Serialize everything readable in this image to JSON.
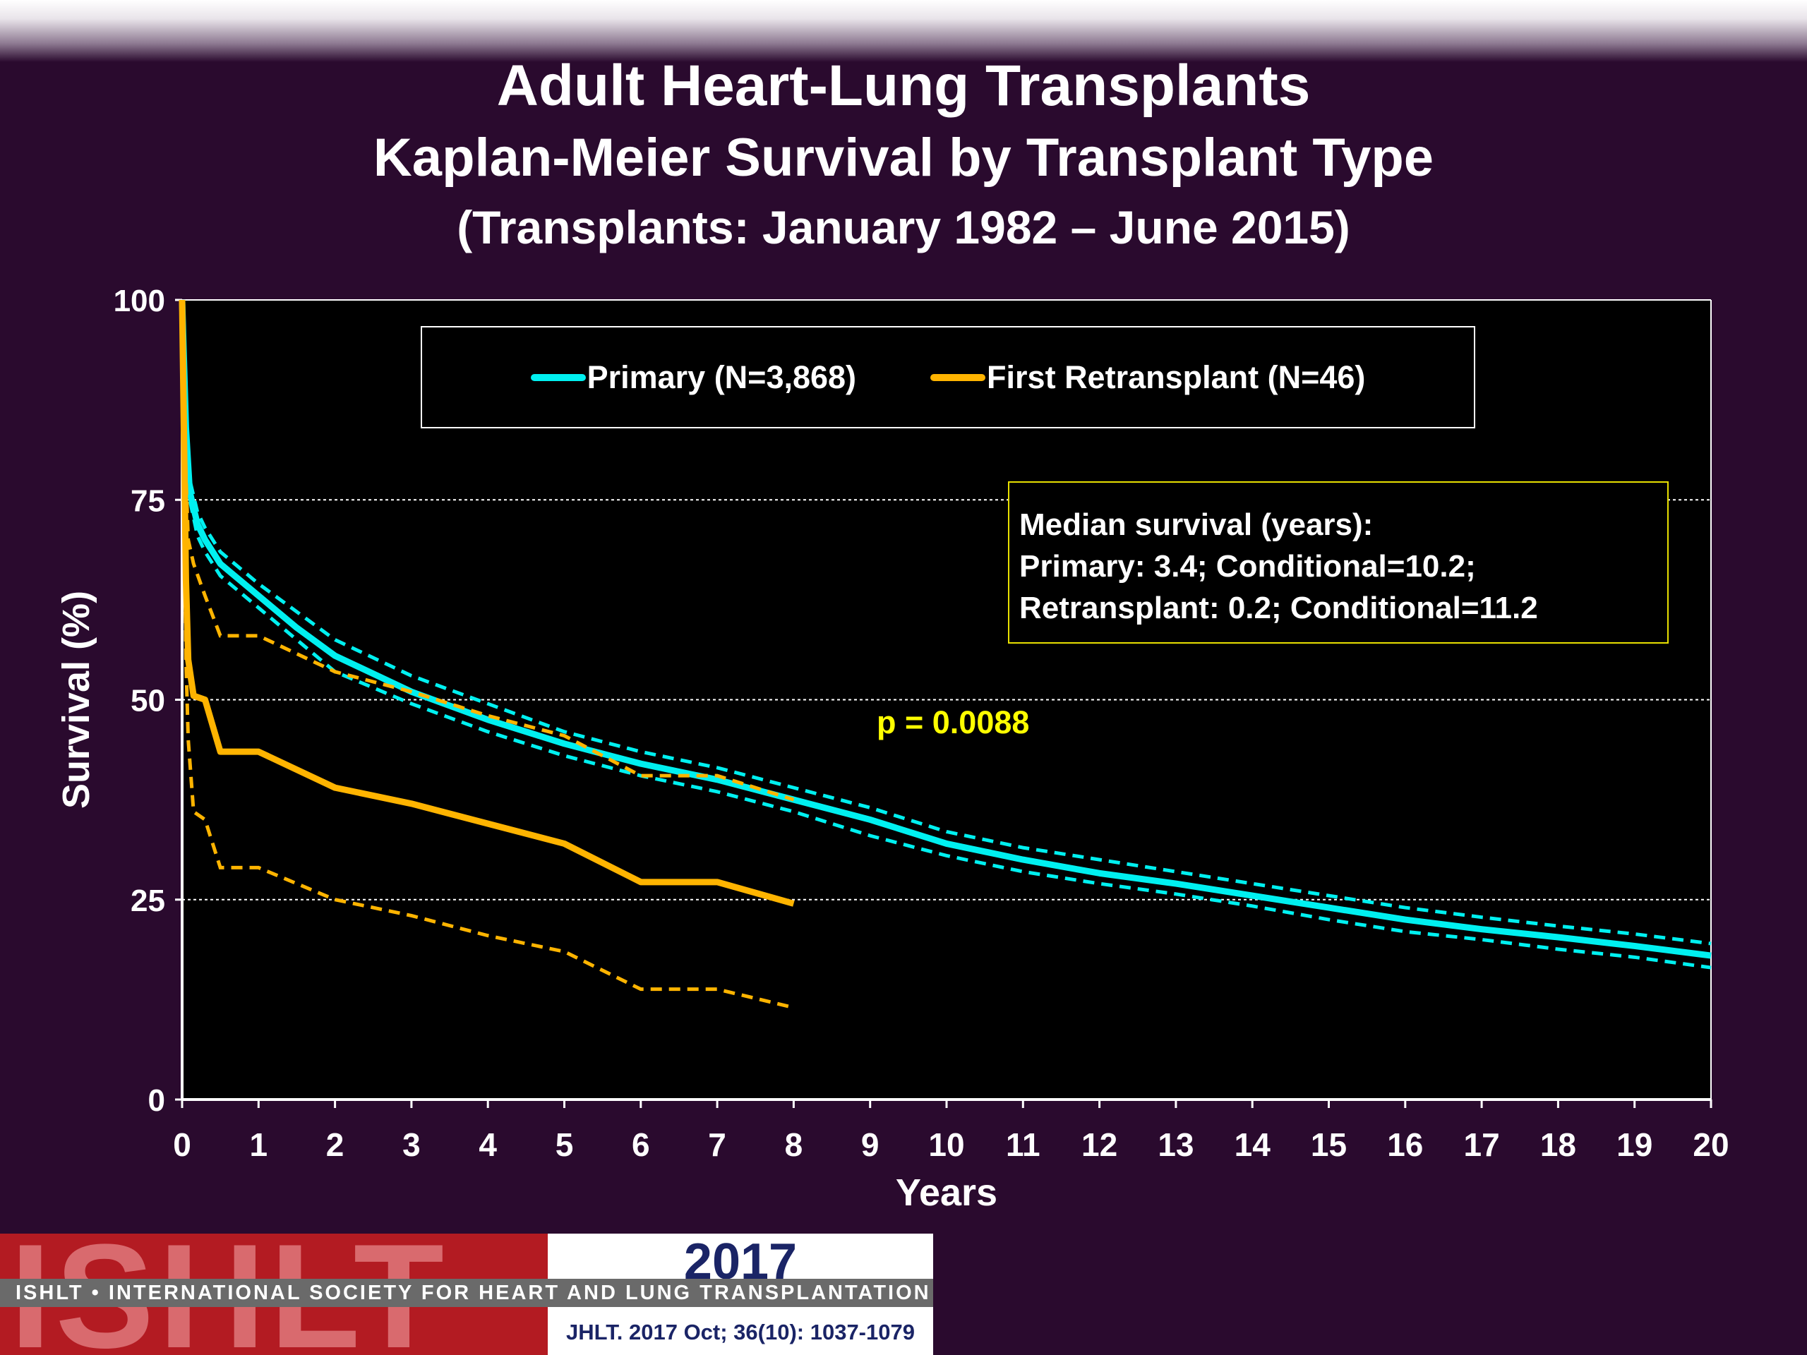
{
  "titles": {
    "line1": "Adult Heart-Lung Transplants",
    "line2": "Kaplan-Meier Survival by Transplant Type",
    "line3": "(Transplants: January 1982 – June 2015)"
  },
  "chart_data": {
    "type": "line",
    "xlabel": "Years",
    "ylabel": "Survival (%)",
    "xlim": [
      0,
      20
    ],
    "ylim": [
      0,
      100
    ],
    "xticks": [
      "0",
      "1",
      "2",
      "3",
      "4",
      "5",
      "6",
      "7",
      "8",
      "9",
      "10",
      "11",
      "12",
      "13",
      "14",
      "15",
      "16",
      "17",
      "18",
      "19",
      "20"
    ],
    "yticks": [
      "0",
      "25",
      "50",
      "75",
      "100"
    ],
    "grid": "horizontal dashed",
    "legend_position": "top-center",
    "series": [
      {
        "name": "Primary (N=3,868)",
        "color": "#00f0f0",
        "style": "solid",
        "x": [
          0,
          0.05,
          0.1,
          0.2,
          0.3,
          0.5,
          1,
          1.5,
          2,
          3,
          4,
          5,
          6,
          7,
          8,
          9,
          10,
          11,
          12,
          13,
          14,
          15,
          16,
          17,
          18,
          19,
          20
        ],
        "y": [
          100,
          84,
          76,
          72,
          70,
          67,
          63,
          59,
          55.5,
          51,
          47.5,
          44.5,
          42,
          40,
          37.5,
          35,
          32,
          30,
          28.3,
          27,
          25.5,
          24,
          22.5,
          21.3,
          20.3,
          19.2,
          18
        ],
        "ci_upper": [
          100,
          85,
          77.5,
          73.5,
          71.5,
          68.5,
          64.5,
          61,
          57.5,
          53,
          49.5,
          46,
          43.5,
          41.5,
          39,
          36.5,
          33.5,
          31.5,
          30,
          28.5,
          27,
          25.5,
          24,
          22.8,
          21.7,
          20.7,
          19.5
        ],
        "ci_lower": [
          100,
          83,
          75,
          70.5,
          68.5,
          65.5,
          61.5,
          57.5,
          53.5,
          49.5,
          46,
          43,
          40.5,
          38.5,
          36,
          33,
          30.5,
          28.5,
          27,
          25.7,
          24.2,
          22.5,
          21,
          20,
          18.8,
          17.8,
          16.5
        ]
      },
      {
        "name": "First Retransplant (N=46)",
        "color": "#ffb400",
        "style": "solid",
        "x": [
          0,
          0.05,
          0.08,
          0.15,
          0.3,
          0.5,
          1,
          2,
          3,
          4,
          5,
          6,
          7,
          8
        ],
        "y": [
          100,
          65,
          55,
          50.5,
          50,
          43.5,
          43.5,
          39,
          37,
          34.5,
          32,
          27.2,
          27.2,
          24.5
        ],
        "ci_upper": [
          100,
          78,
          70,
          67,
          63,
          58,
          58,
          53.5,
          51,
          48,
          45.5,
          40.5,
          40.5,
          37.5
        ],
        "ci_lower": [
          100,
          55,
          45,
          36,
          35,
          29,
          29,
          25,
          23,
          20.5,
          18.5,
          13.8,
          13.8,
          11.5
        ]
      }
    ],
    "annotations": {
      "median_title": "Median survival (years):",
      "median_primary": "Primary: 3.4; Conditional=10.2;",
      "median_retransplant": "Retransplant: 0.2; Conditional=11.2",
      "p_value": "p = 0.0088"
    }
  },
  "footer": {
    "logo_text": "ISHLT",
    "society": "ISHLT • INTERNATIONAL SOCIETY FOR HEART AND LUNG TRANSPLANTATION",
    "year": "2017",
    "citation": "JHLT. 2017 Oct; 36(10): 1037-1079"
  }
}
